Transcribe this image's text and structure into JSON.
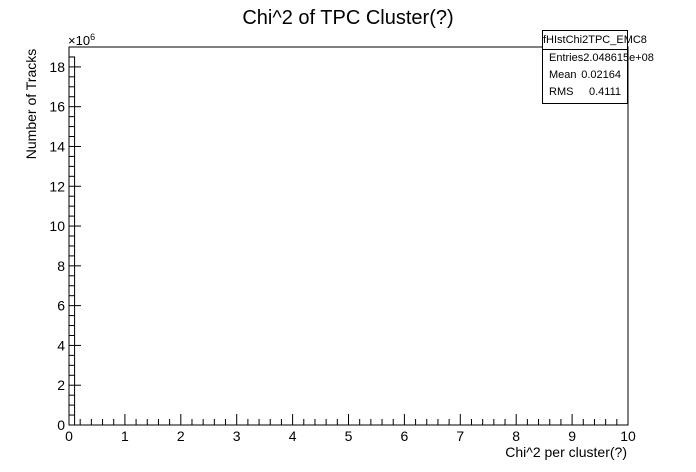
{
  "chart_data": {
    "type": "histogram",
    "title": "Chi^2 of TPC Cluster(?)",
    "xlabel": "Chi^2 per cluster(?)",
    "ylabel": "Number of Tracks",
    "y_multiplier": "×10",
    "y_multiplier_exp": "6",
    "xlim": [
      0,
      10
    ],
    "ylim": [
      0,
      19
    ],
    "x_ticks": [
      "0",
      "1",
      "2",
      "3",
      "4",
      "5",
      "6",
      "7",
      "8",
      "9",
      "10"
    ],
    "y_ticks": [
      "0",
      "2",
      "4",
      "6",
      "8",
      "10",
      "12",
      "14",
      "16",
      "18"
    ],
    "bins": [
      {
        "x0": 0.0,
        "x1": 0.1,
        "value": 18.5
      }
    ],
    "legend_position": "top-right",
    "stats": {
      "name": "fHIstChi2TPC_EMC8",
      "rows": [
        {
          "label": "Entries",
          "value": "2.048615e+08"
        },
        {
          "label": "Mean",
          "value": "0.02164"
        },
        {
          "label": "RMS",
          "value": "0.4111"
        }
      ]
    }
  }
}
